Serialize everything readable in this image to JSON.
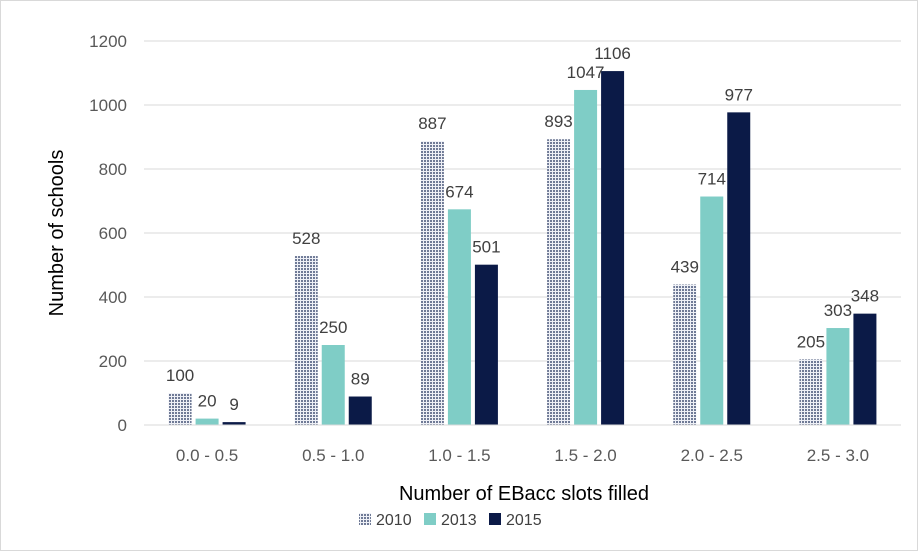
{
  "chart_data": {
    "type": "bar",
    "title": "",
    "xlabel": "Number of EBacc slots filled",
    "ylabel": "Number of schools",
    "categories": [
      "0.0 - 0.5",
      "0.5 - 1.0",
      "1.0 - 1.5",
      "1.5 - 2.0",
      "2.0 - 2.5",
      "2.5 - 3.0"
    ],
    "yticks": [
      "0",
      "200",
      "400",
      "600",
      "800",
      "1000",
      "1200"
    ],
    "ylim": [
      0,
      1200
    ],
    "grid": true,
    "legend_position": "bottom",
    "series": [
      {
        "name": "2010",
        "values": [
          100,
          528,
          887,
          893,
          439,
          205
        ],
        "color": "#b4bcd0",
        "pattern": "dotted"
      },
      {
        "name": "2013",
        "values": [
          20,
          250,
          674,
          1047,
          714,
          303
        ],
        "color": "#7fcdc6"
      },
      {
        "name": "2015",
        "values": [
          9,
          89,
          501,
          1106,
          977,
          348
        ],
        "color": "#0b1a47"
      }
    ],
    "data_labels": [
      [
        "100",
        "528",
        "887",
        "893",
        "439",
        "205"
      ],
      [
        "20",
        "250",
        "674",
        "1047",
        "714",
        "303"
      ],
      [
        "9",
        "89",
        "501",
        "1106",
        "977",
        "348"
      ]
    ]
  }
}
